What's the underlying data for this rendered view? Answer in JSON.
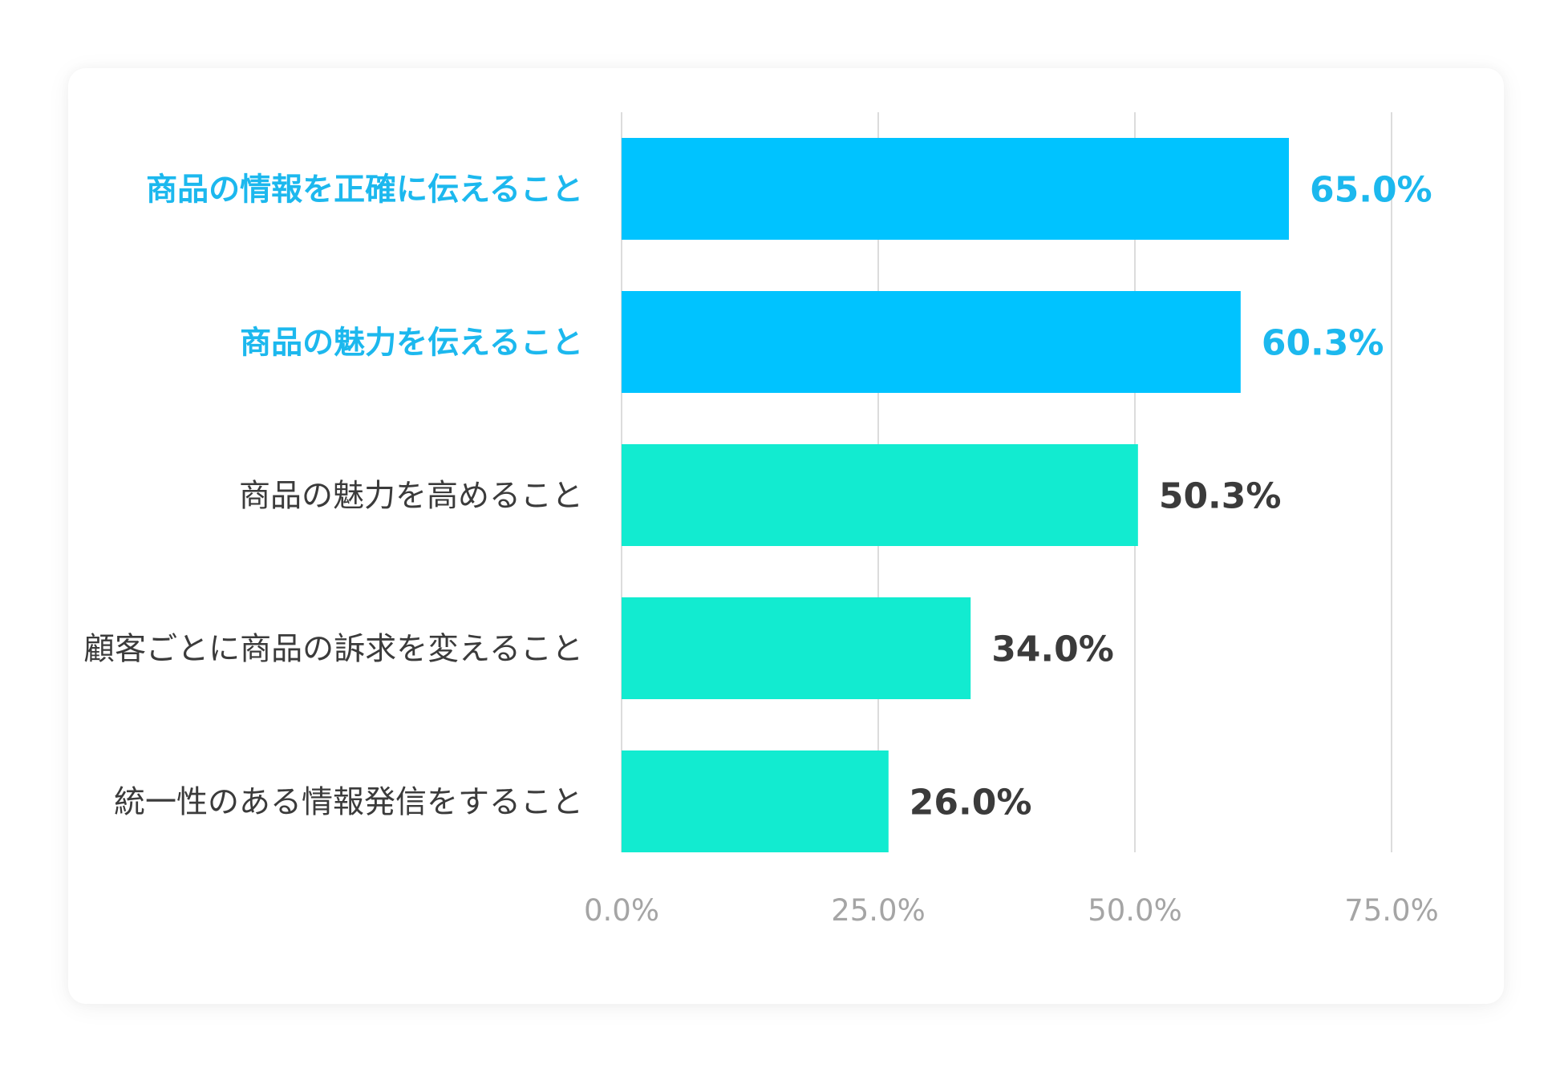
{
  "chart_data": {
    "type": "bar",
    "orientation": "horizontal",
    "categories": [
      "商品の情報を正確に伝えること",
      "商品の魅力を伝えること",
      "商品の魅力を高めること",
      "顧客ごとに商品の訴求を変えること",
      "統一性のある情報発信をすること"
    ],
    "values": [
      65.0,
      60.3,
      50.3,
      34.0,
      26.0
    ],
    "value_labels": [
      "65.0%",
      "60.3%",
      "50.3%",
      "34.0%",
      "26.0%"
    ],
    "highlighted": [
      true,
      true,
      false,
      false,
      false
    ],
    "x_ticks": [
      0,
      25,
      50,
      75
    ],
    "x_tick_labels": [
      "0.0%",
      "25.0%",
      "50.0%",
      "75.0%"
    ],
    "xlim": [
      0,
      75
    ],
    "grid": true,
    "colors": {
      "highlight_bar": "#00C3FF",
      "normal_bar": "#12EBD0",
      "highlight_text": "#1CB8EE",
      "normal_text": "#3B3B3B",
      "value_text": "#3B3B3B",
      "tick_text": "#A5A5A5",
      "grid": "#DCDCDC"
    }
  }
}
